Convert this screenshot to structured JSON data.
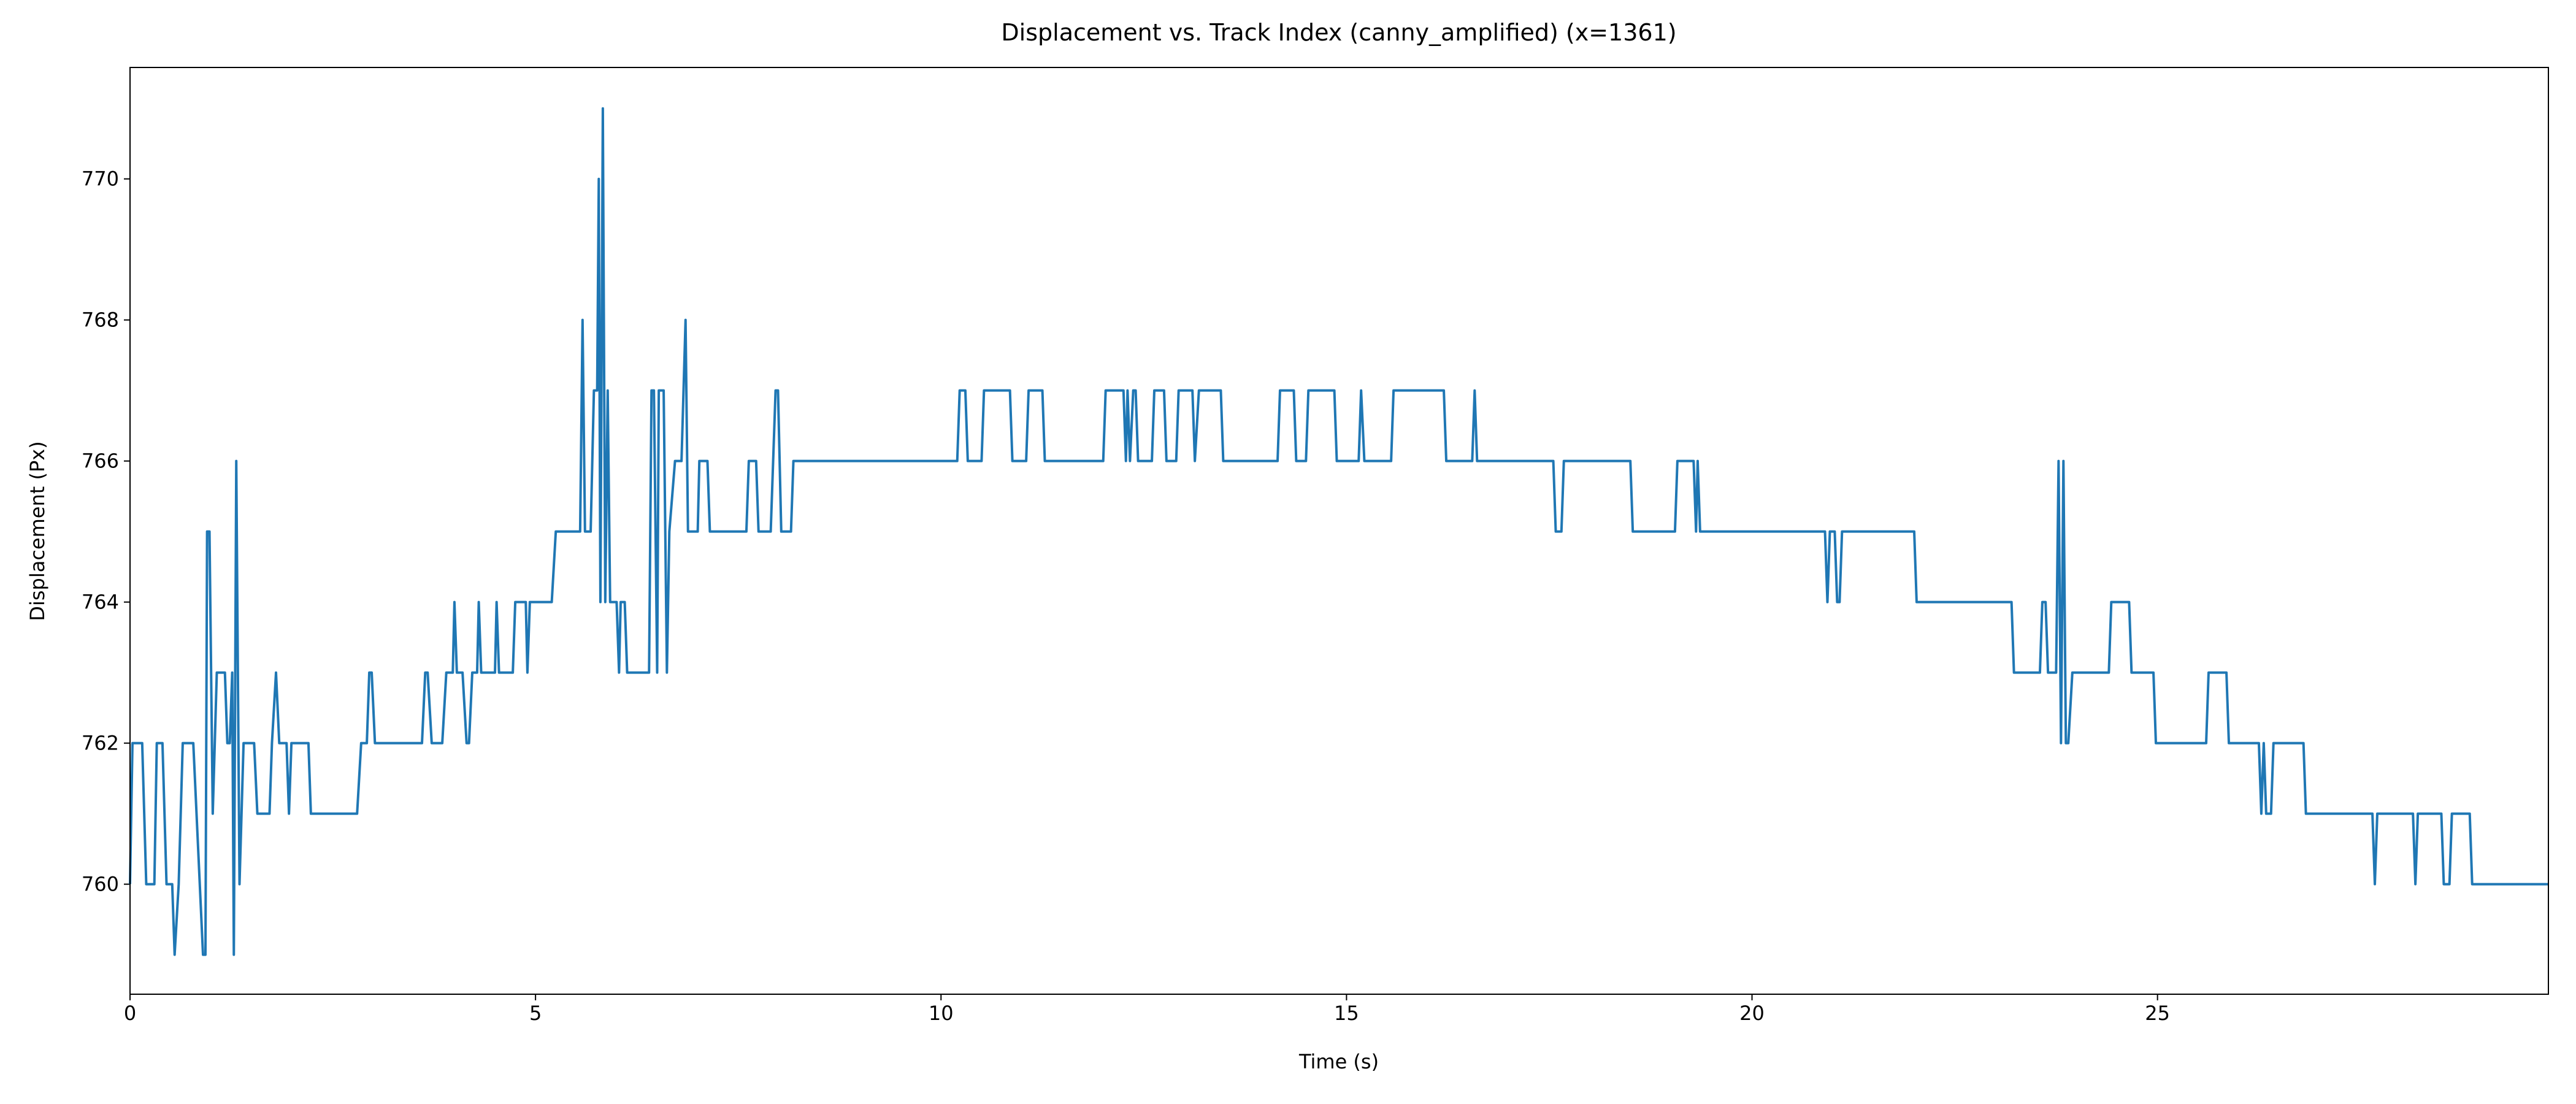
{
  "chart_data": {
    "type": "line",
    "title": "Displacement vs. Track Index (canny_amplified) (x=1361)",
    "xlabel": "Time (s)",
    "ylabel": "Displacement (Px)",
    "color": "#1f77b4",
    "xlim": [
      0,
      29.82
    ],
    "ylim": [
      758.44,
      771.58
    ],
    "xticks": [
      0,
      5,
      10,
      15,
      20,
      25
    ],
    "yticks": [
      760,
      762,
      764,
      766,
      768,
      770
    ],
    "x": [
      0,
      0.03,
      0.15,
      0.2,
      0.3,
      0.33,
      0.4,
      0.45,
      0.52,
      0.55,
      0.6,
      0.65,
      0.78,
      0.9,
      0.93,
      0.95,
      0.98,
      1.02,
      1.07,
      1.17,
      1.2,
      1.23,
      1.26,
      1.28,
      1.31,
      1.35,
      1.4,
      1.53,
      1.57,
      1.72,
      1.75,
      1.8,
      1.84,
      1.93,
      1.96,
      1.99,
      2.2,
      2.23,
      2.8,
      2.85,
      2.92,
      2.95,
      2.98,
      3.02,
      3.6,
      3.64,
      3.67,
      3.72,
      3.85,
      3.9,
      3.98,
      4.0,
      4.03,
      4.1,
      4.15,
      4.18,
      4.22,
      4.28,
      4.3,
      4.33,
      4.5,
      4.52,
      4.55,
      4.72,
      4.75,
      4.88,
      4.9,
      4.93,
      5.2,
      5.25,
      5.55,
      5.58,
      5.61,
      5.68,
      5.72,
      5.76,
      5.78,
      5.8,
      5.83,
      5.86,
      5.89,
      5.92,
      6.0,
      6.03,
      6.05,
      6.1,
      6.13,
      6.4,
      6.43,
      6.46,
      6.5,
      6.52,
      6.58,
      6.62,
      6.65,
      6.72,
      6.8,
      6.85,
      6.88,
      7.0,
      7.02,
      7.12,
      7.15,
      7.6,
      7.63,
      7.72,
      7.75,
      7.9,
      7.93,
      7.96,
      7.99,
      8.03,
      8.15,
      8.18,
      10.2,
      10.23,
      10.3,
      10.33,
      10.5,
      10.53,
      10.85,
      10.88,
      11.05,
      11.08,
      11.25,
      11.28,
      12.0,
      12.03,
      12.25,
      12.28,
      12.3,
      12.33,
      12.37,
      12.4,
      12.43,
      12.6,
      12.63,
      12.75,
      12.78,
      12.9,
      12.93,
      13.1,
      13.13,
      13.18,
      13.45,
      13.48,
      14.15,
      14.18,
      14.35,
      14.38,
      14.5,
      14.53,
      14.85,
      14.88,
      15.15,
      15.18,
      15.22,
      15.55,
      15.58,
      16.2,
      16.23,
      16.55,
      16.58,
      16.61,
      17.55,
      17.58,
      17.65,
      17.68,
      18.5,
      18.53,
      19.05,
      19.08,
      19.28,
      19.31,
      19.33,
      19.36,
      20.9,
      20.93,
      20.96,
      21.02,
      21.05,
      21.08,
      21.11,
      22.0,
      22.03,
      23.2,
      23.23,
      23.55,
      23.58,
      23.62,
      23.65,
      23.75,
      23.78,
      23.81,
      23.84,
      23.87,
      23.9,
      23.95,
      24.4,
      24.43,
      24.65,
      24.68,
      24.95,
      24.98,
      25.6,
      25.63,
      25.85,
      25.88,
      26.25,
      26.28,
      26.31,
      26.34,
      26.4,
      26.43,
      26.8,
      26.83,
      27.65,
      27.68,
      27.71,
      28.15,
      28.18,
      28.21,
      28.5,
      28.53,
      28.6,
      28.63,
      28.85,
      28.88,
      29.82
    ],
    "values": [
      760,
      762,
      762,
      760,
      760,
      762,
      762,
      760,
      760,
      759,
      760,
      762,
      762,
      759,
      759,
      765,
      765,
      761,
      763,
      763,
      762,
      762,
      763,
      759,
      766,
      760,
      762,
      762,
      761,
      761,
      762,
      763,
      762,
      762,
      761,
      762,
      762,
      761,
      761,
      762,
      762,
      763,
      763,
      762,
      762,
      763,
      763,
      762,
      762,
      763,
      763,
      764,
      763,
      763,
      762,
      762,
      763,
      763,
      764,
      763,
      763,
      764,
      763,
      763,
      764,
      764,
      763,
      764,
      764,
      765,
      765,
      768,
      765,
      765,
      767,
      767,
      770,
      764,
      771,
      764,
      767,
      764,
      764,
      763,
      764,
      764,
      763,
      763,
      767,
      767,
      763,
      767,
      767,
      763,
      765,
      766,
      766,
      768,
      765,
      765,
      766,
      766,
      765,
      765,
      766,
      766,
      765,
      765,
      766,
      767,
      767,
      765,
      765,
      766,
      766,
      767,
      767,
      766,
      766,
      767,
      767,
      766,
      766,
      767,
      767,
      766,
      766,
      767,
      767,
      766,
      767,
      766,
      767,
      767,
      766,
      766,
      767,
      767,
      766,
      766,
      767,
      767,
      766,
      767,
      767,
      766,
      766,
      767,
      767,
      766,
      766,
      767,
      767,
      766,
      766,
      767,
      766,
      766,
      767,
      767,
      766,
      766,
      767,
      766,
      766,
      765,
      765,
      766,
      766,
      765,
      765,
      766,
      766,
      765,
      766,
      765,
      765,
      764,
      765,
      765,
      764,
      764,
      765,
      765,
      764,
      764,
      763,
      763,
      764,
      764,
      763,
      763,
      766,
      762,
      766,
      762,
      762,
      763,
      763,
      764,
      764,
      763,
      763,
      762,
      762,
      763,
      763,
      762,
      762,
      761,
      762,
      761,
      761,
      762,
      762,
      761,
      761,
      760,
      761,
      761,
      760,
      761,
      761,
      760,
      760,
      761,
      761,
      760,
      760
    ]
  }
}
